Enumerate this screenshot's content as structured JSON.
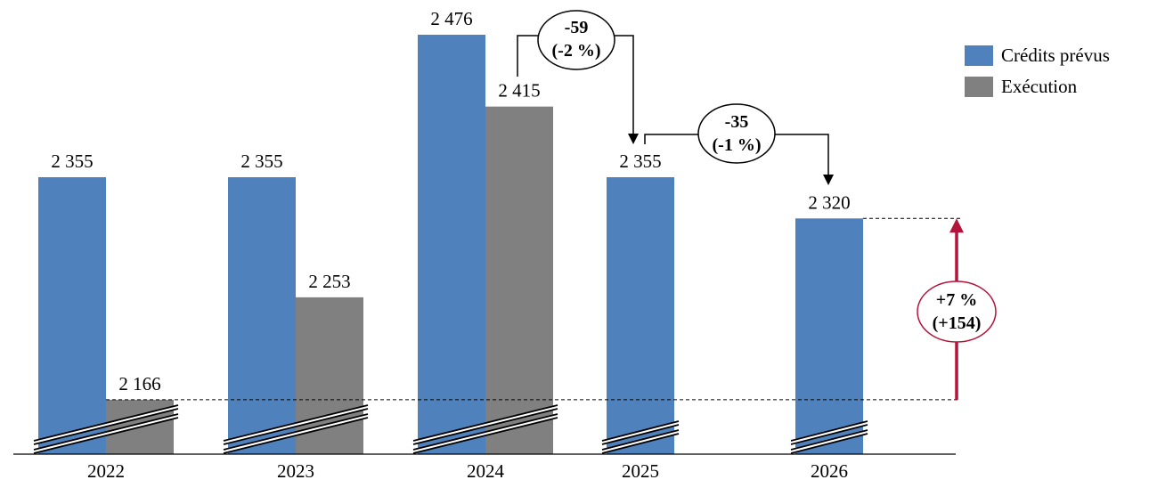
{
  "chart_data": {
    "type": "bar",
    "categories": [
      "2022",
      "2023",
      "2024",
      "2025",
      "2026"
    ],
    "series": [
      {
        "name": "Crédits prévus",
        "values": [
          2355,
          2355,
          2476,
          2355,
          2320
        ],
        "labels": [
          "2 355",
          "2 355",
          "2 476",
          "2 355",
          "2 320"
        ],
        "color": "#4f81bd"
      },
      {
        "name": "Exécution",
        "values": [
          2166,
          2253,
          2415,
          null,
          null
        ],
        "labels": [
          "2 166",
          "2 253",
          "2 415",
          "",
          ""
        ],
        "color": "#808080"
      }
    ],
    "axis_break": true,
    "legend_position": "top-right",
    "grid": false,
    "annotations": {
      "change_2024_2025": {
        "line1": "-59",
        "line2": "(-2 %)"
      },
      "change_2025_2026": {
        "line1": "-35",
        "line2": "(-1 %)"
      },
      "change_exec2022_2026": {
        "line1": "+7 %",
        "line2": "(+154)",
        "color": "#b5143a"
      }
    }
  }
}
